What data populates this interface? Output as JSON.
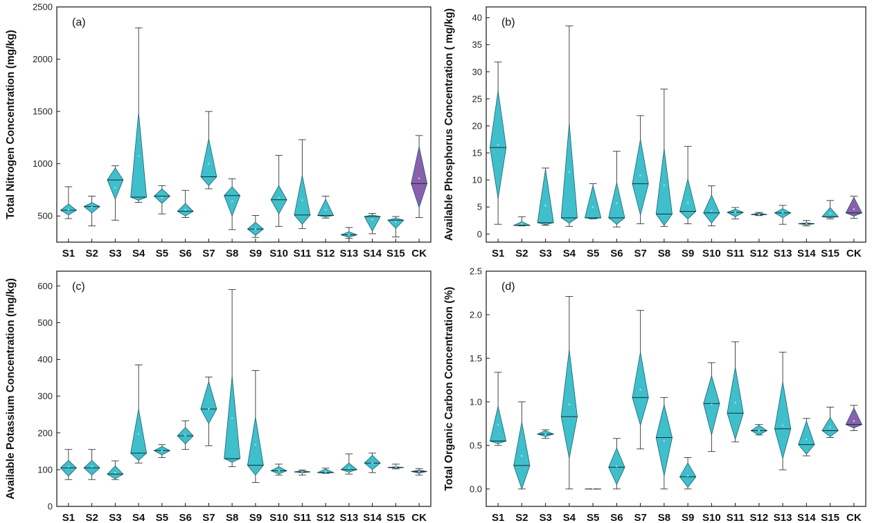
{
  "colors": {
    "main": "#3fbfcc",
    "control": "#8a5fad",
    "edge": "#1c5f6a",
    "axis": "#111111"
  },
  "chart_data": [
    {
      "type": "diamond-box",
      "label": "(a)",
      "ylabel": "Total Nitrogen Concentration (mg/kg)",
      "ylim": [
        250,
        2500
      ],
      "yticks": [
        500,
        1000,
        1500,
        2000,
        2500
      ],
      "categories": [
        "S1",
        "S2",
        "S3",
        "S4",
        "S5",
        "S6",
        "S7",
        "S8",
        "S9",
        "S10",
        "S11",
        "S12",
        "S13",
        "S14",
        "S15",
        "CK"
      ],
      "series": [
        {
          "name": "S1",
          "min": 475,
          "q1": 510,
          "median": 555,
          "q3": 615,
          "max": 780,
          "mean": 560
        },
        {
          "name": "S2",
          "min": 405,
          "q1": 530,
          "median": 590,
          "q3": 630,
          "max": 690,
          "mean": 585
        },
        {
          "name": "S3",
          "min": 460,
          "q1": 660,
          "median": 845,
          "q3": 960,
          "max": 980,
          "mean": 770
        },
        {
          "name": "S4",
          "min": 630,
          "q1": 650,
          "median": 680,
          "q3": 1490,
          "max": 2300,
          "mean": 1075
        },
        {
          "name": "S5",
          "min": 520,
          "q1": 620,
          "median": 690,
          "q3": 760,
          "max": 790,
          "mean": 675
        },
        {
          "name": "S6",
          "min": 485,
          "q1": 500,
          "median": 545,
          "q3": 620,
          "max": 745,
          "mean": 560
        },
        {
          "name": "S7",
          "min": 760,
          "q1": 790,
          "median": 875,
          "q3": 1240,
          "max": 1500,
          "mean": 1000
        },
        {
          "name": "S8",
          "min": 370,
          "q1": 500,
          "median": 695,
          "q3": 780,
          "max": 855,
          "mean": 640
        },
        {
          "name": "S9",
          "min": 295,
          "q1": 315,
          "median": 375,
          "q3": 440,
          "max": 505,
          "mean": 375
        },
        {
          "name": "S10",
          "min": 400,
          "q1": 520,
          "median": 655,
          "q3": 790,
          "max": 1080,
          "mean": 675
        },
        {
          "name": "S11",
          "min": 380,
          "q1": 420,
          "median": 510,
          "q3": 890,
          "max": 1230,
          "mean": 650
        },
        {
          "name": "S12",
          "min": 480,
          "q1": 490,
          "median": 505,
          "q3": 660,
          "max": 690,
          "mean": 560
        },
        {
          "name": "S13",
          "min": 285,
          "q1": 295,
          "median": 320,
          "q3": 350,
          "max": 390,
          "mean": 325
        },
        {
          "name": "S14",
          "min": 330,
          "q1": 355,
          "median": 495,
          "q3": 510,
          "max": 525,
          "mean": 465
        },
        {
          "name": "S15",
          "min": 300,
          "q1": 380,
          "median": 460,
          "q3": 480,
          "max": 495,
          "mean": 445
        },
        {
          "name": "CK",
          "min": 485,
          "q1": 580,
          "median": 810,
          "q3": 1165,
          "max": 1270,
          "mean": 860
        }
      ]
    },
    {
      "type": "diamond-box",
      "label": "(b)",
      "ylabel": "Available Phosphorus Concentration ( mg/kg)",
      "ylim": [
        -1.5,
        42
      ],
      "yticks": [
        0,
        5,
        10,
        15,
        20,
        25,
        30,
        35,
        40
      ],
      "categories": [
        "S1",
        "S2",
        "S3",
        "S4",
        "S5",
        "S6",
        "S7",
        "S8",
        "S9",
        "S10",
        "S11",
        "S12",
        "S13",
        "S14",
        "S15",
        "CK"
      ],
      "series": [
        {
          "name": "S1",
          "min": 1.8,
          "q1": 6.5,
          "median": 16.0,
          "q3": 26.5,
          "max": 31.8,
          "mean": 16.5
        },
        {
          "name": "S2",
          "min": 1.5,
          "q1": 1.5,
          "median": 1.6,
          "q3": 2.3,
          "max": 3.2,
          "mean": 1.9
        },
        {
          "name": "S3",
          "min": 1.6,
          "q1": 1.7,
          "median": 2.1,
          "q3": 12.0,
          "max": 12.2,
          "mean": 5.3
        },
        {
          "name": "S4",
          "min": 1.4,
          "q1": 2.0,
          "median": 3.0,
          "q3": 20.5,
          "max": 38.5,
          "mean": 11.5
        },
        {
          "name": "S5",
          "min": 2.8,
          "q1": 2.8,
          "median": 3.0,
          "q3": 9.0,
          "max": 9.3,
          "mean": 5.0
        },
        {
          "name": "S6",
          "min": 1.3,
          "q1": 1.8,
          "median": 3.0,
          "q3": 9.5,
          "max": 15.3,
          "mean": 5.7
        },
        {
          "name": "S7",
          "min": 1.9,
          "q1": 3.5,
          "median": 9.3,
          "q3": 17.5,
          "max": 21.9,
          "mean": 10.8
        },
        {
          "name": "S8",
          "min": 1.4,
          "q1": 1.6,
          "median": 3.7,
          "q3": 15.8,
          "max": 26.8,
          "mean": 9.0
        },
        {
          "name": "S9",
          "min": 1.9,
          "q1": 2.8,
          "median": 4.2,
          "q3": 10.2,
          "max": 16.2,
          "mean": 5.8
        },
        {
          "name": "S10",
          "min": 1.5,
          "q1": 2.0,
          "median": 3.9,
          "q3": 7.2,
          "max": 8.9,
          "mean": 4.3
        },
        {
          "name": "S11",
          "min": 2.8,
          "q1": 3.2,
          "median": 4.0,
          "q3": 4.6,
          "max": 4.9,
          "mean": 4.0
        },
        {
          "name": "S12",
          "min": 3.4,
          "q1": 3.5,
          "median": 3.6,
          "q3": 3.9,
          "max": 4.0,
          "mean": 3.6
        },
        {
          "name": "S13",
          "min": 1.8,
          "q1": 3.0,
          "median": 3.9,
          "q3": 4.7,
          "max": 5.3,
          "mean": 4.0
        },
        {
          "name": "S14",
          "min": 1.5,
          "q1": 1.7,
          "median": 1.9,
          "q3": 2.1,
          "max": 2.5,
          "mean": 1.9
        },
        {
          "name": "S15",
          "min": 2.8,
          "q1": 3.0,
          "median": 3.2,
          "q3": 4.9,
          "max": 6.2,
          "mean": 3.8
        },
        {
          "name": "CK",
          "min": 2.9,
          "q1": 3.3,
          "median": 3.9,
          "q3": 6.8,
          "max": 7.0,
          "mean": 4.6
        }
      ]
    },
    {
      "type": "diamond-box",
      "label": "(c)",
      "ylabel": "Available Potassium Concentration (mg/kg)",
      "ylim": [
        0,
        640
      ],
      "yticks": [
        0,
        100,
        200,
        300,
        400,
        500,
        600
      ],
      "categories": [
        "S1",
        "S2",
        "S3",
        "S4",
        "S5",
        "S6",
        "S7",
        "S8",
        "S9",
        "S10",
        "S11",
        "S12",
        "S13",
        "S14",
        "S15",
        "CK"
      ],
      "series": [
        {
          "name": "S1",
          "min": 73,
          "q1": 82,
          "median": 105,
          "q3": 125,
          "max": 155,
          "mean": 108
        },
        {
          "name": "S2",
          "min": 73,
          "q1": 85,
          "median": 105,
          "q3": 125,
          "max": 155,
          "mean": 108
        },
        {
          "name": "S3",
          "min": 73,
          "q1": 75,
          "median": 88,
          "q3": 110,
          "max": 124,
          "mean": 92
        },
        {
          "name": "S4",
          "min": 118,
          "q1": 125,
          "median": 145,
          "q3": 265,
          "max": 385,
          "mean": 197
        },
        {
          "name": "S5",
          "min": 133,
          "q1": 140,
          "median": 152,
          "q3": 163,
          "max": 168,
          "mean": 151
        },
        {
          "name": "S6",
          "min": 155,
          "q1": 170,
          "median": 192,
          "q3": 215,
          "max": 233,
          "mean": 193
        },
        {
          "name": "S7",
          "min": 165,
          "q1": 225,
          "median": 265,
          "q3": 340,
          "max": 352,
          "mean": 265
        },
        {
          "name": "S8",
          "min": 108,
          "q1": 120,
          "median": 130,
          "q3": 355,
          "max": 590,
          "mean": 240
        },
        {
          "name": "S9",
          "min": 65,
          "q1": 85,
          "median": 112,
          "q3": 243,
          "max": 370,
          "mean": 168
        },
        {
          "name": "S10",
          "min": 85,
          "q1": 88,
          "median": 97,
          "q3": 108,
          "max": 115,
          "mean": 98
        },
        {
          "name": "S11",
          "min": 85,
          "q1": 91,
          "median": 94,
          "q3": 97,
          "max": 99,
          "mean": 94
        },
        {
          "name": "S12",
          "min": 90,
          "q1": 90,
          "median": 92,
          "q3": 102,
          "max": 104,
          "mean": 94
        },
        {
          "name": "S13",
          "min": 88,
          "q1": 93,
          "median": 100,
          "q3": 118,
          "max": 143,
          "mean": 104
        },
        {
          "name": "S14",
          "min": 92,
          "q1": 100,
          "median": 118,
          "q3": 139,
          "max": 145,
          "mean": 118
        },
        {
          "name": "S15",
          "min": 102,
          "q1": 104,
          "median": 106,
          "q3": 108,
          "max": 115,
          "mean": 107
        },
        {
          "name": "CK",
          "min": 85,
          "q1": 90,
          "median": 95,
          "q3": 99,
          "max": 103,
          "mean": 95
        }
      ]
    },
    {
      "type": "diamond-box",
      "label": "(d)",
      "ylabel": "Total Organic Carbon Concentration (%)",
      "ylim": [
        -0.2,
        2.5
      ],
      "yticks": [
        0.0,
        0.5,
        1.0,
        1.5,
        2.0,
        2.5
      ],
      "categories": [
        "S1",
        "S2",
        "S3",
        "S4",
        "S5",
        "S6",
        "S7",
        "S8",
        "S9",
        "S10",
        "S11",
        "S12",
        "S13",
        "S14",
        "S15",
        "CK"
      ],
      "series": [
        {
          "name": "S1",
          "min": 0.5,
          "q1": 0.52,
          "median": 0.55,
          "q3": 0.95,
          "max": 1.34,
          "mean": 0.74
        },
        {
          "name": "S2",
          "min": 0.0,
          "q1": 0.0,
          "median": 0.27,
          "q3": 0.77,
          "max": 1.0,
          "mean": 0.38
        },
        {
          "name": "S3",
          "min": 0.58,
          "q1": 0.6,
          "median": 0.63,
          "q3": 0.67,
          "max": 0.68,
          "mean": 0.63
        },
        {
          "name": "S4",
          "min": 0.0,
          "q1": 0.35,
          "median": 0.83,
          "q3": 1.6,
          "max": 2.21,
          "mean": 0.97
        },
        {
          "name": "S5",
          "min": 0.0,
          "q1": 0.0,
          "median": 0.0,
          "q3": 0.0,
          "max": 0.0,
          "mean": 0.0
        },
        {
          "name": "S6",
          "min": 0.0,
          "q1": 0.05,
          "median": 0.25,
          "q3": 0.47,
          "max": 0.58,
          "mean": 0.26
        },
        {
          "name": "S7",
          "min": 0.46,
          "q1": 0.73,
          "median": 1.05,
          "q3": 1.57,
          "max": 2.05,
          "mean": 1.14
        },
        {
          "name": "S8",
          "min": 0.0,
          "q1": 0.15,
          "median": 0.59,
          "q3": 0.97,
          "max": 1.05,
          "mean": 0.55
        },
        {
          "name": "S9",
          "min": 0.0,
          "q1": 0.02,
          "median": 0.14,
          "q3": 0.3,
          "max": 0.36,
          "mean": 0.15
        },
        {
          "name": "S10",
          "min": 0.43,
          "q1": 0.62,
          "median": 0.98,
          "q3": 1.3,
          "max": 1.45,
          "mean": 0.97
        },
        {
          "name": "S11",
          "min": 0.54,
          "q1": 0.57,
          "median": 0.87,
          "q3": 1.4,
          "max": 1.69,
          "mean": 0.99
        },
        {
          "name": "S12",
          "min": 0.62,
          "q1": 0.62,
          "median": 0.67,
          "q3": 0.73,
          "max": 0.74,
          "mean": 0.67
        },
        {
          "name": "S13",
          "min": 0.22,
          "q1": 0.35,
          "median": 0.69,
          "q3": 1.23,
          "max": 1.57,
          "mean": 0.73
        },
        {
          "name": "S14",
          "min": 0.38,
          "q1": 0.4,
          "median": 0.51,
          "q3": 0.78,
          "max": 0.81,
          "mean": 0.57
        },
        {
          "name": "S15",
          "min": 0.59,
          "q1": 0.6,
          "median": 0.67,
          "q3": 0.82,
          "max": 0.94,
          "mean": 0.71
        },
        {
          "name": "CK",
          "min": 0.67,
          "q1": 0.7,
          "median": 0.74,
          "q3": 0.93,
          "max": 0.96,
          "mean": 0.78
        }
      ]
    }
  ]
}
